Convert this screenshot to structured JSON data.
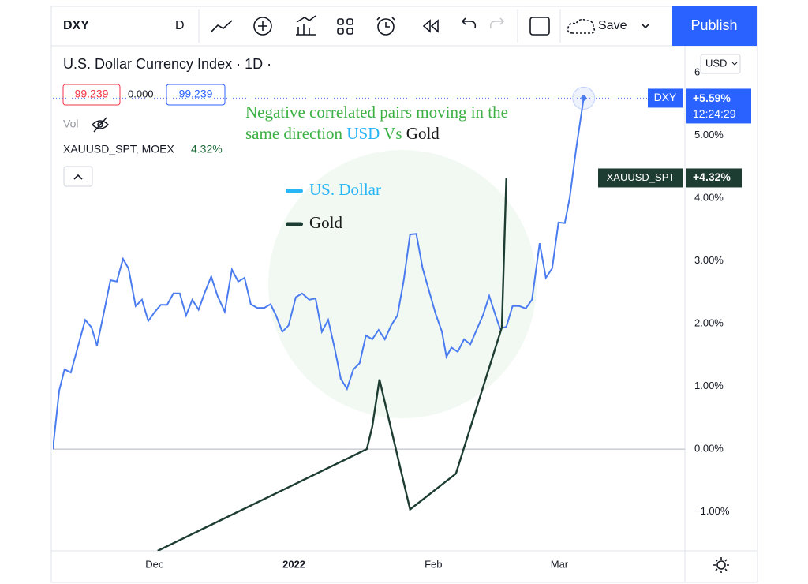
{
  "toolbar": {
    "symbol": "DXY",
    "interval": "D",
    "save": "Save",
    "publish": "Publish"
  },
  "header": {
    "title": "U.S. Dollar Currency Index · 1D ·",
    "bid": "99.239",
    "spread": "0.000",
    "ask": "99.239",
    "volume": "Vol",
    "compare_symbol": "XAUUSD_SPT, MOEX",
    "compare_change": "4.32%"
  },
  "axis_currency": "USD",
  "price_labels": {
    "dxy_symbol": "DXY",
    "dxy_change": "+5.59%",
    "dxy_time": "12:24:29",
    "gold_symbol": "XAUUSD_SPT",
    "gold_change": "+4.32%"
  },
  "chart_data": {
    "type": "line",
    "annotation": {
      "line1": "Negative correlated pairs moving in the",
      "line2_parts": [
        {
          "text": "same direction ",
          "color": "#3cb043"
        },
        {
          "text": "USD",
          "color": "#29b6f6"
        },
        {
          "text": " Vs ",
          "color": "#3cb043"
        },
        {
          "text": "Gold",
          "color": "#1b1b1b"
        }
      ],
      "color": "#3cb043"
    },
    "series": [
      {
        "name": "US. Dollar",
        "color": "#4a7cf0",
        "legend_color": "#29b6f6",
        "x": [
          -22.6,
          -21.2,
          -20.0,
          -18.6,
          -15.4,
          -14.0,
          -12.8,
          -11.4,
          -9.8,
          -8.4,
          -7.0,
          -5.8,
          -4.2,
          -2.8,
          -1.4,
          0,
          1.4,
          2.8,
          4.2,
          5.6,
          7.0,
          8.4,
          9.8,
          11.2,
          12.6,
          14.0,
          15.6,
          17.2,
          18.6,
          20.0,
          21.4,
          22.8,
          24.4,
          25.8,
          27.0,
          28.4,
          29.8,
          31.4,
          32.8,
          34.4,
          35.8,
          37.2,
          38.6,
          40.0,
          41.4,
          42.8,
          44.2,
          45.6,
          47.0,
          48.4,
          49.8,
          51.2,
          52.6,
          54.0,
          55.4,
          56.8,
          58.2,
          59.6,
          61.1,
          62.5,
          63.9,
          64.9,
          66.0,
          67.4,
          68.8,
          70.2,
          71.6,
          73.0,
          74.4,
          75.8,
          76.8,
          78.2,
          79.6,
          81.1,
          82.5,
          83.9,
          85.6,
          87.0,
          88.4,
          89.8,
          91.2,
          92.3,
          93.7,
          95.4
        ],
        "values": [
          0,
          0.93,
          1.27,
          1.22,
          2.06,
          1.94,
          1.65,
          2.13,
          2.69,
          2.67,
          3.03,
          2.88,
          2.28,
          2.38,
          2.04,
          2.18,
          2.3,
          2.3,
          2.48,
          2.48,
          2.13,
          2.38,
          2.22,
          2.5,
          2.75,
          2.44,
          2.19,
          2.86,
          2.67,
          2.73,
          2.31,
          2.25,
          2.25,
          2.31,
          2.13,
          1.87,
          1.97,
          2.42,
          2.48,
          2.38,
          2.4,
          1.87,
          2.06,
          1.62,
          1.12,
          0.96,
          1.27,
          1.37,
          1.81,
          1.75,
          1.9,
          1.75,
          1.97,
          2.13,
          2.69,
          3.42,
          3.43,
          2.88,
          2.5,
          2.15,
          1.87,
          1.47,
          1.62,
          1.55,
          1.75,
          1.67,
          1.9,
          2.13,
          2.44,
          2.13,
          1.92,
          1.95,
          2.28,
          2.28,
          2.24,
          2.38,
          3.28,
          2.73,
          2.88,
          3.61,
          3.6,
          4.01,
          4.77,
          5.59
        ]
      },
      {
        "name": "Gold",
        "color": "#1e3d32",
        "legend_color": "#1e3d32",
        "x": [
          0.7,
          47.2,
          48.4,
          50.0,
          56.8,
          67.0,
          77.2,
          78.2
        ],
        "values": [
          -1.62,
          0,
          0.36,
          1.11,
          -0.96,
          -0.39,
          1.94,
          4.32
        ]
      }
    ],
    "xlim": [
      -22.6,
      117.9
    ],
    "xticks": [
      {
        "value": 0,
        "label": "Dec"
      },
      {
        "value": 31,
        "label": "2022"
      },
      {
        "value": 62,
        "label": "Feb"
      },
      {
        "value": 90,
        "label": "Mar"
      }
    ],
    "ylim": [
      -1.62,
      6.4
    ],
    "yticks": [
      {
        "value": -1,
        "label": "−1.00%"
      },
      {
        "value": 0,
        "label": "0.00%"
      },
      {
        "value": 1,
        "label": "1.00%"
      },
      {
        "value": 2,
        "label": "2.00%"
      },
      {
        "value": 3,
        "label": "3.00%"
      },
      {
        "value": 4,
        "label": "4.00%"
      },
      {
        "value": 5,
        "label": "5.00%"
      },
      {
        "value": 6,
        "label": "6"
      }
    ],
    "zero_line": true,
    "grid": false
  }
}
